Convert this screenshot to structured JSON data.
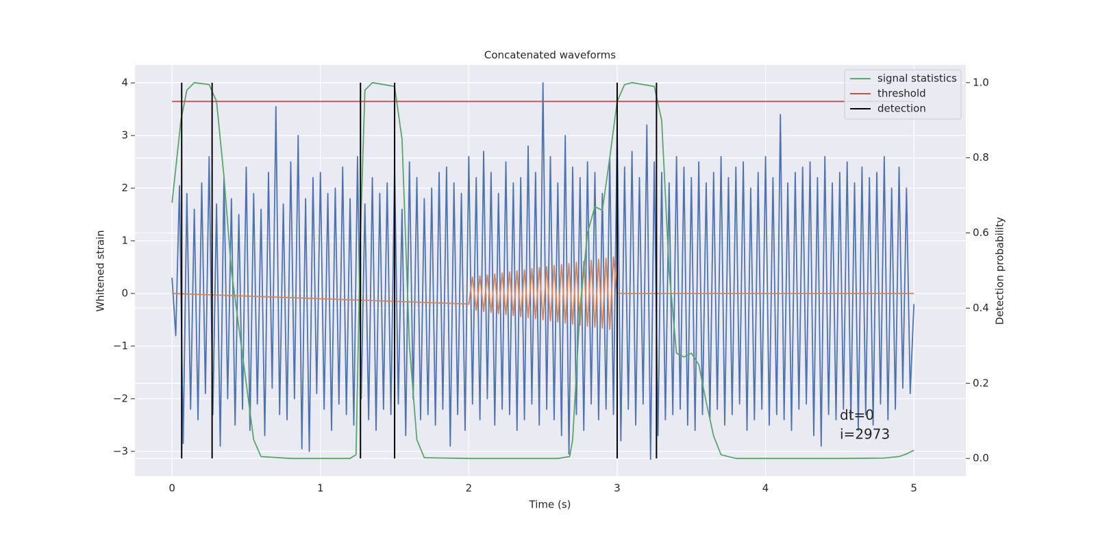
{
  "chart_data": {
    "type": "line",
    "title": "Concatenated waveforms",
    "xlabel": "Time (s)",
    "ylabel": "Whitened strain",
    "y2label": "Detection probability",
    "xlim": [
      -0.25,
      5.35
    ],
    "ylim": [
      -3.47,
      4.34
    ],
    "y2lim": [
      -0.047,
      1.047
    ],
    "xticks": [
      0,
      1,
      2,
      3,
      4,
      5
    ],
    "yticks": [
      {
        "value": -3,
        "label": "−3"
      },
      {
        "value": -2,
        "label": "−2"
      },
      {
        "value": -1,
        "label": "−1"
      },
      0,
      1,
      2,
      3,
      4
    ],
    "y2ticks": [
      {
        "value": 0,
        "label": "0.0"
      },
      0.2,
      0.4,
      0.6,
      0.8,
      {
        "value": 1,
        "label": "1.0"
      }
    ],
    "grid": true,
    "legend": "upper right",
    "annotation": [
      "dt=0",
      "i=2973"
    ],
    "series": [
      {
        "color": "#4c72b0",
        "x": [
          0,
          0.025,
          0.05,
          0.075,
          0.1,
          0.125,
          0.15,
          0.175,
          0.2,
          0.225,
          0.25,
          0.275,
          0.3,
          0.325,
          0.35,
          0.375,
          0.4,
          0.425,
          0.45,
          0.475,
          0.5,
          0.525,
          0.55,
          0.575,
          0.6,
          0.625,
          0.65,
          0.675,
          0.7,
          0.725,
          0.75,
          0.775,
          0.8,
          0.825,
          0.85,
          0.875,
          0.9,
          0.925,
          0.95,
          0.975,
          1,
          1.025,
          1.05,
          1.075,
          1.1,
          1.125,
          1.15,
          1.175,
          1.2,
          1.225,
          1.25,
          1.275,
          1.3,
          1.325,
          1.35,
          1.375,
          1.4,
          1.425,
          1.45,
          1.475,
          1.5,
          1.525,
          1.55,
          1.575,
          1.6,
          1.625,
          1.65,
          1.675,
          1.7,
          1.725,
          1.75,
          1.775,
          1.8,
          1.825,
          1.85,
          1.875,
          1.9,
          1.925,
          1.95,
          1.975,
          2,
          2.025,
          2.05,
          2.075,
          2.1,
          2.125,
          2.15,
          2.175,
          2.2,
          2.225,
          2.25,
          2.275,
          2.3,
          2.325,
          2.35,
          2.375,
          2.4,
          2.425,
          2.45,
          2.475,
          2.5,
          2.525,
          2.55,
          2.575,
          2.6,
          2.625,
          2.65,
          2.675,
          2.7,
          2.725,
          2.75,
          2.775,
          2.8,
          2.825,
          2.85,
          2.875,
          2.9,
          2.925,
          2.95,
          2.975,
          3,
          3.025,
          3.05,
          3.075,
          3.1,
          3.125,
          3.15,
          3.175,
          3.2,
          3.225,
          3.25,
          3.275,
          3.3,
          3.325,
          3.35,
          3.375,
          3.4,
          3.425,
          3.45,
          3.475,
          3.5,
          3.525,
          3.55,
          3.575,
          3.6,
          3.625,
          3.65,
          3.675,
          3.7,
          3.725,
          3.75,
          3.775,
          3.8,
          3.825,
          3.85,
          3.875,
          3.9,
          3.925,
          3.95,
          3.975,
          4,
          4.025,
          4.05,
          4.075,
          4.1,
          4.125,
          4.15,
          4.175,
          4.2,
          4.225,
          4.25,
          4.275,
          4.3,
          4.325,
          4.35,
          4.375,
          4.4,
          4.425,
          4.45,
          4.475,
          4.5,
          4.525,
          4.55,
          4.575,
          4.6,
          4.625,
          4.65,
          4.675,
          4.7,
          4.725,
          4.75,
          4.775,
          4.8,
          4.825,
          4.85,
          4.875,
          4.9,
          4.925,
          4.95,
          4.975,
          5
        ],
        "values": [
          0.3,
          -0.8,
          2.05,
          -2.85,
          1.9,
          -2.2,
          1.6,
          -2.4,
          2.1,
          -1.9,
          2.6,
          -2.3,
          1.7,
          -2.9,
          2.2,
          -2.0,
          1.8,
          -2.5,
          1.5,
          -2.2,
          2.4,
          -2.6,
          1.9,
          -2.1,
          1.6,
          -2.7,
          2.3,
          -1.8,
          3.55,
          -2.3,
          1.7,
          -2.4,
          2.5,
          -2.0,
          3.0,
          -2.95,
          1.8,
          -3.0,
          2.2,
          -1.9,
          2.3,
          -2.2,
          1.9,
          -2.6,
          2.0,
          -2.1,
          2.4,
          -2.3,
          1.8,
          -2.5,
          2.6,
          -2.0,
          1.7,
          -2.4,
          2.2,
          -2.6,
          1.9,
          -2.2,
          2.1,
          -2.3,
          2.4,
          -2.1,
          1.6,
          -2.7,
          2.5,
          -2.0,
          2.2,
          -2.4,
          1.8,
          -2.3,
          2.0,
          -2.5,
          2.3,
          -2.2,
          2.4,
          -2.9,
          2.1,
          -2.3,
          1.9,
          -2.6,
          2.6,
          -2.1,
          2.2,
          -2.4,
          2.7,
          -2.0,
          2.3,
          -2.5,
          1.9,
          -2.2,
          2.5,
          -2.3,
          2.1,
          -2.6,
          2.2,
          -2.4,
          2.8,
          -2.1,
          2.3,
          -2.5,
          4.0,
          -2.2,
          2.6,
          -2.4,
          2.1,
          -2.7,
          3.0,
          -3.05,
          2.4,
          -2.3,
          2.2,
          -2.6,
          2.5,
          -2.1,
          2.3,
          -2.4,
          1.9,
          -2.2,
          2.6,
          -2.3,
          3.2,
          -2.8,
          2.4,
          -2.2,
          2.7,
          -2.5,
          2.2,
          -2.1,
          3.2,
          -3.15,
          2.5,
          -2.7,
          2.3,
          -2.4,
          2.1,
          -2.3,
          2.6,
          -2.2,
          2.4,
          -2.5,
          2.2,
          -2.6,
          2.5,
          -2.3,
          2.1,
          -2.4,
          2.3,
          -2.2,
          2.6,
          -2.5,
          2.2,
          -2.3,
          2.4,
          -2.1,
          2.5,
          -2.6,
          2.0,
          -2.4,
          2.3,
          -2.2,
          2.6,
          -2.5,
          2.2,
          -2.3,
          3.4,
          -2.4,
          2.1,
          -2.6,
          2.3,
          -2.2,
          2.4,
          -2.1,
          2.5,
          -2.7,
          2.2,
          -2.9,
          2.6,
          -2.3,
          2.1,
          -2.4,
          2.3,
          -2.2,
          2.5,
          -2.4,
          2.1,
          -2.6,
          2.4,
          -2.3,
          2.2,
          -2.5,
          2.3,
          -2.1,
          2.6,
          -2.4,
          2.0,
          -2.2,
          2.4,
          -1.8,
          2.0,
          -1.9,
          -0.2
        ]
      },
      {
        "color": "#dd8452",
        "x": [
          0,
          2,
          2.025,
          2.05,
          2.075,
          2.1,
          2.125,
          2.15,
          2.175,
          2.2,
          2.225,
          2.25,
          2.275,
          2.3,
          2.325,
          2.35,
          2.375,
          2.4,
          2.425,
          2.45,
          2.475,
          2.5,
          2.525,
          2.55,
          2.575,
          2.6,
          2.625,
          2.65,
          2.675,
          2.7,
          2.725,
          2.75,
          2.775,
          2.8,
          2.825,
          2.85,
          2.875,
          2.9,
          2.925,
          2.95,
          2.975,
          3,
          5
        ],
        "values": [
          0,
          -0.2,
          0.31,
          -0.32,
          0.33,
          -0.34,
          0.35,
          -0.36,
          0.37,
          -0.38,
          0.39,
          -0.4,
          0.41,
          -0.42,
          0.43,
          -0.44,
          0.45,
          -0.46,
          0.47,
          -0.48,
          0.49,
          -0.5,
          0.51,
          -0.52,
          0.53,
          -0.54,
          0.55,
          -0.56,
          0.57,
          -0.58,
          0.59,
          -0.6,
          0.61,
          -0.62,
          0.63,
          -0.64,
          0.65,
          -0.66,
          0.67,
          -0.68,
          0.69,
          0,
          0
        ]
      },
      {
        "name": "signal statistics",
        "color": "#55a868",
        "axis": "y2",
        "x": [
          0,
          0.06,
          0.1,
          0.15,
          0.25,
          0.3,
          0.35,
          0.4,
          0.45,
          0.5,
          0.55,
          0.6,
          0.8,
          1.2,
          1.24,
          1.27,
          1.3,
          1.35,
          1.5,
          1.55,
          1.6,
          1.65,
          1.7,
          2.0,
          2.6,
          2.68,
          2.7,
          2.75,
          2.8,
          2.85,
          2.9,
          2.95,
          3.0,
          3.05,
          3.1,
          3.25,
          3.3,
          3.35,
          3.4,
          3.45,
          3.5,
          3.55,
          3.6,
          3.65,
          3.7,
          3.8,
          4.5,
          4.8,
          4.9,
          4.95,
          5.0
        ],
        "values": [
          0.68,
          0.9,
          0.98,
          1.0,
          0.995,
          0.95,
          0.75,
          0.5,
          0.35,
          0.2,
          0.05,
          0.005,
          0.0,
          0.0,
          0.01,
          0.6,
          0.98,
          1.0,
          0.99,
          0.85,
          0.3,
          0.05,
          0.002,
          0.0,
          0.0,
          0.005,
          0.05,
          0.4,
          0.6,
          0.67,
          0.66,
          0.8,
          0.95,
          0.995,
          1.0,
          0.99,
          0.9,
          0.5,
          0.28,
          0.27,
          0.28,
          0.25,
          0.15,
          0.06,
          0.01,
          0.0,
          0.0,
          0.001,
          0.005,
          0.012,
          0.022
        ]
      },
      {
        "name": "threshold",
        "color": "#c44e52",
        "axis": "y2",
        "x": [
          0,
          5
        ],
        "values": [
          0.95,
          0.95
        ]
      },
      {
        "name": "detection",
        "color": "#000000",
        "axis": "y2",
        "kind": "vlines",
        "ymin": 0,
        "ymax": 1,
        "x": [
          0.065,
          0.27,
          1.27,
          1.5,
          3.0,
          3.265
        ]
      }
    ]
  }
}
